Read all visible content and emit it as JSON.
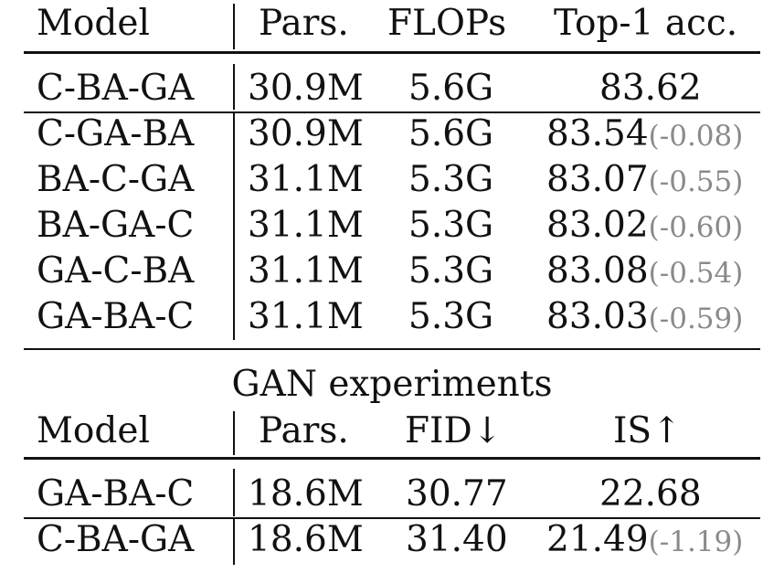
{
  "classification": {
    "header": {
      "model": "Model",
      "params": "Pars.",
      "flops": "FLOPs",
      "acc": "Top-1 acc."
    },
    "baseline": {
      "model": "C-BA-GA",
      "params": "30.9M",
      "flops": "5.6G",
      "acc": "83.62"
    },
    "rows": [
      {
        "model": "C-GA-BA",
        "params": "30.9M",
        "flops": "5.6G",
        "acc": "83.54",
        "delta": "(-0.08)"
      },
      {
        "model": "BA-C-GA",
        "params": "31.1M",
        "flops": "5.3G",
        "acc": "83.07",
        "delta": "(-0.55)"
      },
      {
        "model": "BA-GA-C",
        "params": "31.1M",
        "flops": "5.3G",
        "acc": "83.02",
        "delta": "(-0.60)"
      },
      {
        "model": "GA-C-BA",
        "params": "31.1M",
        "flops": "5.3G",
        "acc": "83.08",
        "delta": "(-0.54)"
      },
      {
        "model": "GA-BA-C",
        "params": "31.1M",
        "flops": "5.3G",
        "acc": "83.03",
        "delta": "(-0.59)"
      }
    ]
  },
  "gan": {
    "title": "GAN experiments",
    "header": {
      "model": "Model",
      "params": "Pars.",
      "fid": "FID↓",
      "is": "IS↑"
    },
    "baseline": {
      "model": "GA-BA-C",
      "params": "18.6M",
      "fid": "30.77",
      "is": "22.68"
    },
    "rows": [
      {
        "model": "C-BA-GA",
        "params": "18.6M",
        "fid": "31.40",
        "is": "21.49",
        "delta": "(-1.19)"
      }
    ]
  }
}
